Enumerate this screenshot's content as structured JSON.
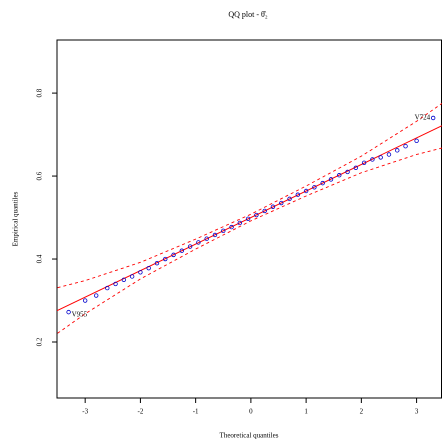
{
  "chart_data": {
    "type": "qq",
    "title": "QQ plot - θ̂₂",
    "x_label": "Theoretical quantiles",
    "y_label": "Empirical quantiles",
    "xlim": [
      -3.51,
      3.46
    ],
    "ylim": [
      0.065,
      0.928
    ],
    "xticks": [
      -3,
      -2,
      -1,
      0,
      1,
      2,
      3
    ],
    "yticks": [
      0.2,
      0.4,
      0.6,
      0.8
    ],
    "point_color": "#0000cc",
    "x": [
      -3.3,
      -3.0,
      -2.8,
      -2.6,
      -2.45,
      -2.3,
      -2.15,
      -2.0,
      -1.85,
      -1.7,
      -1.55,
      -1.4,
      -1.25,
      -1.1,
      -0.95,
      -0.8,
      -0.65,
      -0.5,
      -0.35,
      -0.2,
      -0.05,
      0.1,
      0.25,
      0.4,
      0.55,
      0.7,
      0.85,
      1.0,
      1.15,
      1.3,
      1.45,
      1.6,
      1.75,
      1.9,
      2.05,
      2.2,
      2.35,
      2.5,
      2.65,
      2.8,
      3.0,
      3.3
    ],
    "values": [
      0.272,
      0.3,
      0.312,
      0.33,
      0.34,
      0.35,
      0.358,
      0.368,
      0.378,
      0.39,
      0.4,
      0.41,
      0.42,
      0.43,
      0.44,
      0.449,
      0.458,
      0.468,
      0.477,
      0.487,
      0.497,
      0.506,
      0.516,
      0.526,
      0.535,
      0.545,
      0.555,
      0.564,
      0.573,
      0.583,
      0.592,
      0.602,
      0.61,
      0.62,
      0.632,
      0.64,
      0.645,
      0.652,
      0.662,
      0.672,
      0.685,
      0.74
    ],
    "point_labels": [
      "V955",
      null,
      null,
      null,
      null,
      null,
      null,
      null,
      null,
      null,
      null,
      null,
      null,
      null,
      null,
      null,
      null,
      null,
      null,
      null,
      null,
      null,
      null,
      null,
      null,
      null,
      null,
      null,
      null,
      null,
      null,
      null,
      null,
      null,
      null,
      null,
      null,
      null,
      null,
      null,
      null,
      "V724"
    ],
    "reference_line": {
      "intercept": 0.5,
      "slope": 0.064,
      "color": "#ff0000"
    },
    "band": {
      "color": "#ff0000",
      "x": [
        -3.5,
        -3,
        -2,
        -1,
        0,
        1,
        2,
        3,
        3.5
      ],
      "lower": [
        0.221,
        0.268,
        0.352,
        0.424,
        0.492,
        0.552,
        0.608,
        0.652,
        0.669
      ],
      "upper": [
        0.331,
        0.348,
        0.392,
        0.448,
        0.508,
        0.576,
        0.648,
        0.732,
        0.779
      ]
    }
  }
}
